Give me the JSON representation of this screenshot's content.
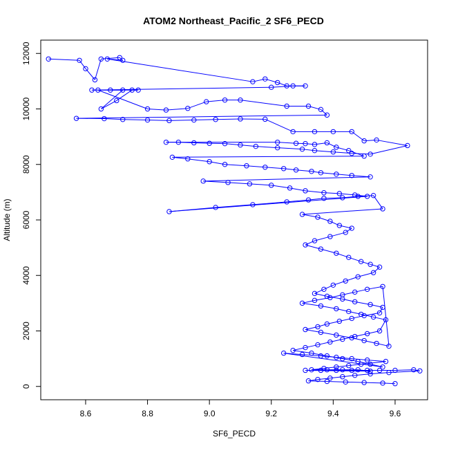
{
  "chart_data": {
    "type": "scatter",
    "title": "ATOM2 Northeast_Pacific_2 SF6_PECD",
    "xlabel": "SF6_PECD",
    "ylabel": "Altitude (m)",
    "xlim": [
      8.455,
      9.705
    ],
    "ylim": [
      -480,
      12480
    ],
    "xticks": [
      "8.6",
      "8.8",
      "9.0",
      "9.2",
      "9.4",
      "9.6"
    ],
    "yticks": [
      "0",
      "2000",
      "4000",
      "6000",
      "8000",
      "10000",
      "12000"
    ],
    "grid": false,
    "legend": "none",
    "series": [
      {
        "color": "#0000ff",
        "style": "points-and-lines",
        "x": [
          8.48,
          8.58,
          8.6,
          8.63,
          8.65,
          8.71,
          8.72,
          8.67,
          9.14,
          9.18,
          9.22,
          9.25,
          9.31,
          9.27,
          9.2,
          8.62,
          8.68,
          8.77,
          8.75,
          8.7,
          8.65,
          8.72,
          8.64,
          8.8,
          8.86,
          8.93,
          8.99,
          9.05,
          9.1,
          9.25,
          9.32,
          9.36,
          9.38,
          8.57,
          8.66,
          8.72,
          8.8,
          8.87,
          8.95,
          9.02,
          9.1,
          9.18,
          9.27,
          9.34,
          9.4,
          9.46,
          9.5,
          9.54,
          9.64,
          9.52,
          9.46,
          9.4,
          9.34,
          9.3,
          9.22,
          9.15,
          9.1,
          9.05,
          9.0,
          8.95,
          8.9,
          8.86,
          9.22,
          9.28,
          9.31,
          9.34,
          9.38,
          9.41,
          9.45,
          9.5,
          8.88,
          8.93,
          9.0,
          9.05,
          9.12,
          9.18,
          9.24,
          9.28,
          9.33,
          9.36,
          9.41,
          9.46,
          9.52,
          8.98,
          9.06,
          9.13,
          9.2,
          9.26,
          9.31,
          9.37,
          9.42,
          9.47,
          9.51,
          8.87,
          9.02,
          9.14,
          9.25,
          9.32,
          9.37,
          9.43,
          9.48,
          9.53,
          9.56,
          9.3,
          9.35,
          9.39,
          9.42,
          9.46,
          9.44,
          9.39,
          9.34,
          9.31,
          9.36,
          9.41,
          9.45,
          9.49,
          9.52,
          9.55,
          9.53,
          9.48,
          9.44,
          9.4,
          9.37,
          9.34,
          9.38,
          9.43,
          9.47,
          9.52,
          9.56,
          9.55,
          9.5,
          9.46,
          9.42,
          9.38,
          9.35,
          9.31,
          9.36,
          9.41,
          9.46,
          9.5,
          9.54,
          9.58,
          9.56,
          9.51,
          9.47,
          9.43,
          9.39,
          9.34,
          9.3,
          9.36,
          9.41,
          9.45,
          9.49,
          9.53,
          9.57,
          9.55,
          9.51,
          9.47,
          9.43,
          9.39,
          9.35,
          9.31,
          9.27,
          9.33,
          9.38,
          9.43,
          9.48,
          9.52,
          9.56,
          9.24,
          9.3,
          9.36,
          9.41,
          9.46,
          9.51,
          9.57,
          9.49,
          9.45,
          9.41,
          9.37,
          9.33,
          9.38,
          9.43,
          9.48,
          9.52,
          9.31,
          9.36,
          9.41,
          9.46,
          9.51,
          9.55,
          9.6,
          9.66,
          9.68,
          9.58,
          9.52,
          9.47,
          9.43,
          9.39,
          9.35,
          9.32,
          9.38,
          9.44,
          9.5,
          9.56,
          9.6
        ],
        "y": [
          11800,
          11750,
          11450,
          11050,
          11800,
          11850,
          11750,
          11800,
          10980,
          11080,
          10950,
          10830,
          10830,
          10830,
          10780,
          10680,
          10680,
          10680,
          10680,
          10300,
          10000,
          10680,
          10680,
          10000,
          9960,
          10020,
          10260,
          10320,
          10320,
          10100,
          10100,
          9980,
          9780,
          9660,
          9650,
          9620,
          9600,
          9580,
          9600,
          9620,
          9640,
          9630,
          9180,
          9180,
          9180,
          9180,
          8850,
          8880,
          8680,
          8370,
          8400,
          8450,
          8500,
          8550,
          8600,
          8650,
          8700,
          8750,
          8760,
          8780,
          8800,
          8800,
          8800,
          8760,
          8750,
          8720,
          8780,
          8620,
          8500,
          8300,
          8260,
          8200,
          8100,
          8000,
          7950,
          7900,
          7850,
          7800,
          7750,
          7700,
          7650,
          7600,
          7550,
          7400,
          7350,
          7300,
          7250,
          7150,
          7050,
          6980,
          6950,
          6900,
          6850,
          6300,
          6450,
          6550,
          6650,
          6720,
          6780,
          6800,
          6850,
          6880,
          6400,
          6200,
          6100,
          5950,
          5800,
          5700,
          5550,
          5400,
          5250,
          5100,
          4950,
          4800,
          4650,
          4500,
          4400,
          4300,
          4100,
          3950,
          3800,
          3650,
          3500,
          3350,
          3250,
          3150,
          3050,
          2950,
          2850,
          2650,
          2550,
          2450,
          2350,
          2250,
          2150,
          2050,
          1950,
          1850,
          1750,
          1650,
          1550,
          1450,
          3600,
          3500,
          3400,
          3300,
          3200,
          3100,
          3000,
          2900,
          2800,
          2700,
          2600,
          2500,
          2400,
          2000,
          1900,
          1800,
          1700,
          1600,
          1500,
          1400,
          1300,
          1200,
          1100,
          1000,
          900,
          800,
          700,
          1200,
          1150,
          1100,
          1050,
          1000,
          950,
          900,
          800,
          750,
          700,
          650,
          600,
          600,
          600,
          600,
          550,
          580,
          580,
          580,
          580,
          580,
          580,
          580,
          600,
          560,
          500,
          450,
          400,
          350,
          300,
          250,
          200,
          180,
          160,
          140,
          120,
          100
        ]
      }
    ]
  }
}
